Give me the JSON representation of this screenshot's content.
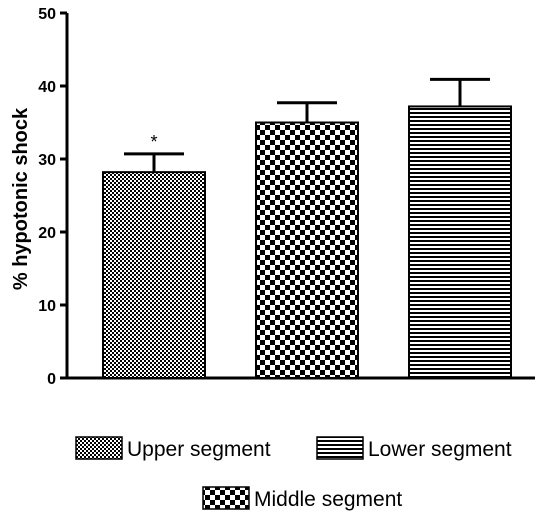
{
  "chart_data": {
    "type": "bar",
    "ylabel": "% hypotonic shock",
    "ylim": [
      0,
      50
    ],
    "yticks": [
      0,
      10,
      20,
      30,
      40,
      50
    ],
    "bars": [
      {
        "name": "Upper segment",
        "value": 28.2,
        "error": 2.5,
        "pattern": "fine-check",
        "annotation": "*"
      },
      {
        "name": "Middle segment",
        "value": 35.0,
        "error": 2.7,
        "pattern": "coarse-check",
        "annotation": ""
      },
      {
        "name": "Lower segment",
        "value": 37.2,
        "error": 3.7,
        "pattern": "horizontal-lines",
        "annotation": ""
      }
    ],
    "legend": [
      "Upper segment",
      "Lower segment",
      "Middle segment"
    ],
    "legend_position": "bottom",
    "grid": false
  }
}
